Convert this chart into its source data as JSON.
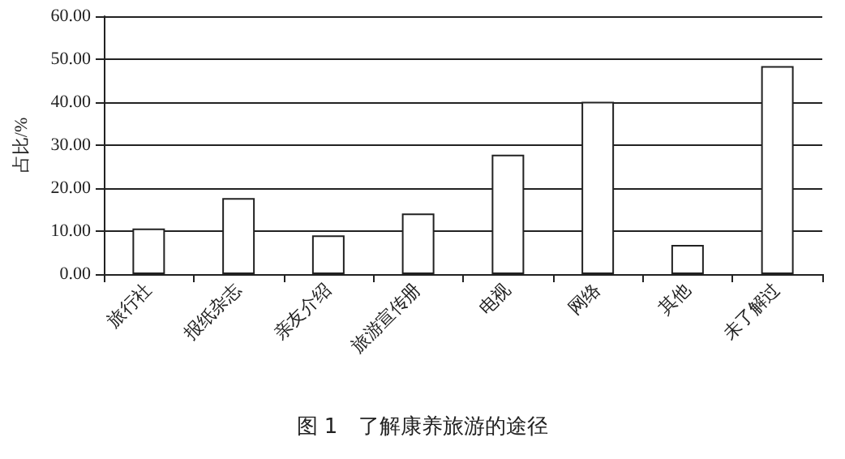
{
  "chart_data": {
    "type": "bar",
    "title": "图 1　了解康养旅游的途径",
    "ylabel": "占比/%",
    "categories": [
      "旅行社",
      "报纸杂志",
      "亲友介绍",
      "旅游宣传册",
      "电视",
      "网络",
      "其他",
      "未了解过"
    ],
    "values": [
      10.6,
      17.7,
      9.0,
      14.1,
      27.8,
      40.1,
      6.8,
      48.4
    ],
    "color": "#ffffff",
    "ylim": [
      0,
      60
    ],
    "yticks": [
      {
        "value": 0,
        "label": "0.00"
      },
      {
        "value": 10,
        "label": "10.00"
      },
      {
        "value": 20,
        "label": "20.00"
      },
      {
        "value": 30,
        "label": "30.00"
      },
      {
        "value": 40,
        "label": "40.00"
      },
      {
        "value": 50,
        "label": "50.00"
      },
      {
        "value": 60,
        "label": "60.00"
      }
    ],
    "grid": "y"
  }
}
